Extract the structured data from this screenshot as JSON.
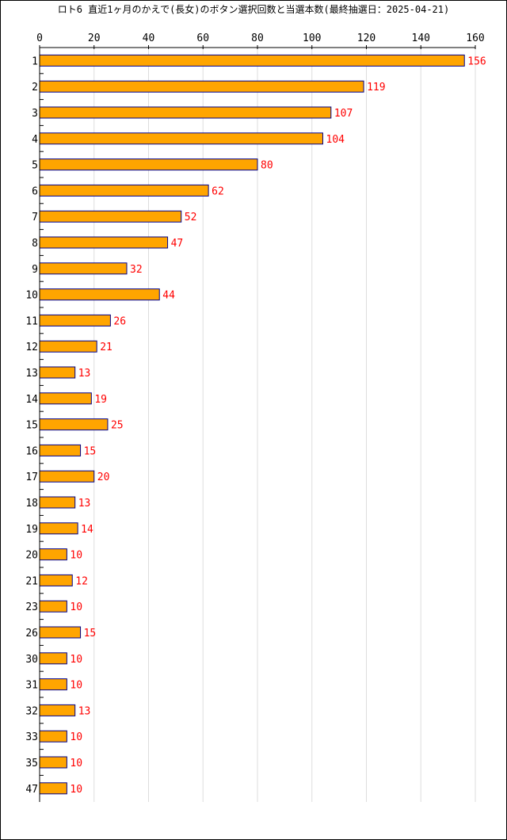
{
  "chart_data": {
    "type": "bar",
    "orientation": "horizontal",
    "title": "ロト6 直近1ヶ月のかえで(長女)のボタン選択回数と当選本数(最終抽選日：2025-04-21)",
    "xlim": [
      0,
      160
    ],
    "x_ticks": [
      "0",
      "20",
      "40",
      "60",
      "80",
      "100",
      "120",
      "140",
      "160"
    ],
    "grid": true,
    "legend": "none",
    "bar_color": "#ffa500",
    "bar_border_color": "#00008b",
    "label_color": "#ff0000",
    "categories": [
      "1",
      "2",
      "3",
      "4",
      "5",
      "6",
      "7",
      "8",
      "9",
      "10",
      "11",
      "12",
      "13",
      "14",
      "15",
      "16",
      "17",
      "18",
      "19",
      "20",
      "21",
      "23",
      "26",
      "30",
      "31",
      "32",
      "33",
      "35",
      "47"
    ],
    "values": [
      156,
      119,
      107,
      104,
      80,
      62,
      52,
      47,
      32,
      44,
      26,
      21,
      13,
      19,
      25,
      15,
      20,
      13,
      14,
      10,
      12,
      10,
      15,
      10,
      10,
      13,
      10,
      10,
      10
    ]
  }
}
